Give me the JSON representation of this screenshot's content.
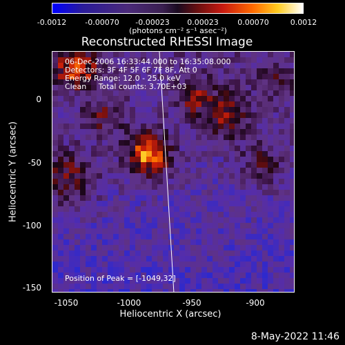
{
  "colorbar": {
    "ticks": [
      "-0.0012",
      "-0.00070",
      "-0.00023",
      "0.00023",
      "0.00070",
      "0.0012"
    ],
    "units": "(photons cm⁻² s⁻¹ asec⁻²)"
  },
  "title": "Reconstructed RHESSI Image",
  "info": {
    "time": "06-Dec-2006 16:33:44.000 to 16:35:08.000",
    "detectors": "Detectors: 3F 4F 5F 6F 7F 8F, Att 0",
    "energy": "Energy Range: 12.0 - 25.0 keV",
    "clean": "Clean     Total counts: 3.70E+03"
  },
  "peak": "Position of Peak = [-1049,32]",
  "axes": {
    "xlabel": "Heliocentric X (arcsec)",
    "ylabel": "Heliocentric Y (arcsec)",
    "xticks": [
      "-1050",
      "-1000",
      "-950",
      "-900"
    ],
    "yticks": [
      "0",
      "-50",
      "-100",
      "-150"
    ]
  },
  "date_stamp": "8-May-2022 11:46",
  "colors": {
    "background": "#000000",
    "foreground": "#ffffff"
  }
}
